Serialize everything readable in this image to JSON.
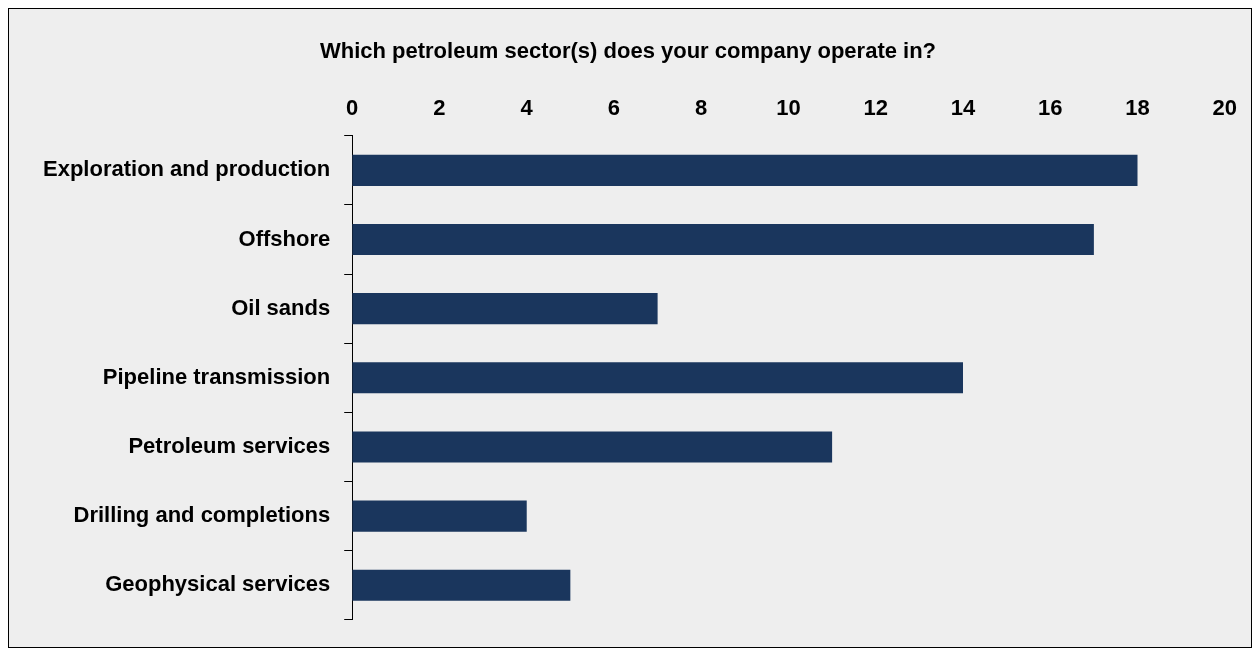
{
  "chart_data": {
    "type": "bar",
    "orientation": "horizontal",
    "title": "Which petroleum sector(s) does your company operate in?",
    "categories": [
      "Exploration and production",
      "Offshore",
      "Oil sands",
      "Pipeline transmission",
      "Petroleum services",
      "Drilling and completions",
      "Geophysical services"
    ],
    "values": [
      18,
      17,
      7,
      14,
      11,
      4,
      5
    ],
    "color": "#1a365d",
    "xlim": [
      0,
      20
    ],
    "xticks": [
      0,
      2,
      4,
      6,
      8,
      10,
      12,
      14,
      16,
      18,
      20
    ],
    "grid": false,
    "legend": false
  }
}
